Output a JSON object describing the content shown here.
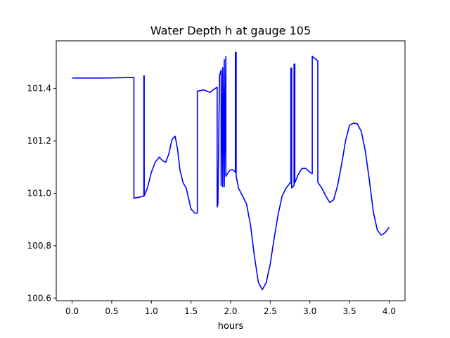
{
  "chart_data": {
    "type": "line",
    "title": "Water Depth h at gauge 105",
    "xlabel": "hours",
    "ylabel": "",
    "xlim": [
      -0.2,
      4.2
    ],
    "ylim": [
      100.59,
      101.582
    ],
    "grid": false,
    "xticks": [
      0.0,
      0.5,
      1.0,
      1.5,
      2.0,
      2.5,
      3.0,
      3.5,
      4.0
    ],
    "xtick_labels": [
      "0.0",
      "0.5",
      "1.0",
      "1.5",
      "2.0",
      "2.5",
      "3.0",
      "3.5",
      "4.0"
    ],
    "yticks": [
      100.6,
      100.8,
      101.0,
      101.2,
      101.4
    ],
    "ytick_labels": [
      "100.6",
      "100.8",
      "101.0",
      "101.2",
      "101.4"
    ],
    "colors": {
      "line": "#0000ff",
      "axes": "#000000",
      "background": "#ffffff"
    },
    "series": [
      {
        "name": "",
        "color": "#0000ff",
        "x": [
          0.0,
          0.4,
          0.78,
          0.78,
          0.85,
          0.905,
          0.905,
          0.91,
          0.91,
          0.95,
          1.0,
          1.05,
          1.1,
          1.14,
          1.18,
          1.22,
          1.26,
          1.3,
          1.33,
          1.36,
          1.4,
          1.44,
          1.47,
          1.5,
          1.55,
          1.58,
          1.58,
          1.62,
          1.66,
          1.7,
          1.74,
          1.78,
          1.83,
          1.83,
          1.84,
          1.86,
          1.88,
          1.88,
          1.9,
          1.9,
          1.92,
          1.92,
          1.94,
          1.94,
          1.97,
          2.0,
          2.03,
          2.06,
          2.06,
          2.07,
          2.07,
          2.1,
          2.15,
          2.2,
          2.25,
          2.3,
          2.35,
          2.4,
          2.45,
          2.5,
          2.55,
          2.6,
          2.65,
          2.7,
          2.75,
          2.76,
          2.76,
          2.77,
          2.77,
          2.8,
          2.8,
          2.81,
          2.81,
          2.85,
          2.9,
          2.95,
          3.0,
          3.03,
          3.03,
          3.1,
          3.1,
          3.15,
          3.2,
          3.25,
          3.3,
          3.35,
          3.4,
          3.45,
          3.5,
          3.55,
          3.6,
          3.65,
          3.7,
          3.75,
          3.8,
          3.85,
          3.9,
          3.95,
          4.0
        ],
        "y": [
          101.44,
          101.44,
          101.442,
          100.982,
          100.985,
          100.99,
          101.448,
          101.448,
          100.99,
          101.02,
          101.08,
          101.12,
          101.138,
          101.125,
          101.118,
          101.15,
          101.205,
          101.218,
          101.17,
          101.09,
          101.04,
          101.02,
          100.98,
          100.94,
          100.924,
          100.924,
          101.39,
          101.392,
          101.395,
          101.39,
          101.385,
          101.395,
          101.405,
          100.948,
          100.96,
          101.45,
          101.47,
          101.03,
          101.48,
          101.025,
          101.51,
          101.025,
          101.522,
          101.065,
          101.08,
          101.09,
          101.09,
          101.08,
          101.538,
          101.538,
          101.065,
          101.02,
          100.99,
          100.96,
          100.88,
          100.76,
          100.66,
          100.632,
          100.66,
          100.73,
          100.83,
          100.92,
          100.99,
          101.02,
          101.04,
          101.04,
          101.478,
          101.478,
          101.02,
          101.03,
          101.493,
          101.493,
          101.04,
          101.07,
          101.095,
          101.095,
          101.08,
          101.075,
          101.523,
          101.505,
          101.042,
          101.02,
          100.99,
          100.965,
          100.975,
          101.03,
          101.11,
          101.2,
          101.26,
          101.268,
          101.265,
          101.235,
          101.16,
          101.05,
          100.93,
          100.86,
          100.84,
          100.85,
          100.87
        ]
      }
    ]
  }
}
